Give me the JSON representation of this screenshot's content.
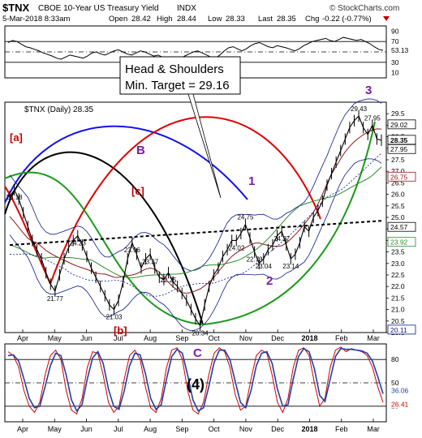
{
  "header": {
    "symbol": "$TNX",
    "name": "CBOE 10-Year US Treasury Yield",
    "exchange": "INDX",
    "watermark": "© StockCharts.com",
    "datetime": "5-Mar-2018 8:33am",
    "open_label": "Open",
    "open": "28.42",
    "high_label": "High",
    "high": "28.44",
    "low_label": "Low",
    "low": "28.33",
    "last_label": "Last",
    "last": "28.35",
    "chg_label": "Chg",
    "chg": "-0.22 (-0.77%)"
  },
  "colors": {
    "price": "#000000",
    "ma50": "#8b1a1a",
    "ma200": "#2e8b2e",
    "band": "#0a1a8a",
    "red_cycle": "#e00000",
    "green_cycle": "#1a9a1a",
    "black_cycle": "#000000",
    "blue_cycle": "#1010ee",
    "purple_label": "#7a1ea8",
    "rsi_red": "#d00000",
    "rsi_blue": "#1f3faa"
  },
  "annotation": {
    "callout_line1": "Head & Shoulders",
    "callout_line2": "Min. Target = 29.16",
    "wave_a": "[a]",
    "wave_b": "[b]",
    "wave_c": "[c]",
    "wave_B": "B",
    "wave_C": "C",
    "wave_1": "1",
    "wave_2": "2",
    "wave_3": "3",
    "wave_4": "(4)"
  },
  "chart_data": [
    {
      "type": "line",
      "panel": "top-rsi",
      "ylim": [
        0,
        100
      ],
      "ticks": [
        "90",
        "70",
        "50",
        "30",
        "10"
      ],
      "current_value_label": "53.13",
      "values": [
        68,
        72,
        70,
        65,
        60,
        58,
        55,
        52,
        48,
        45,
        42,
        38,
        36,
        40,
        44,
        42,
        40,
        38,
        42,
        48,
        50,
        46,
        44,
        48,
        52,
        54,
        50,
        46,
        44,
        48,
        52,
        50,
        46,
        42,
        44,
        40,
        35,
        32,
        30,
        36,
        42,
        46,
        50,
        52,
        48,
        44,
        40,
        38,
        44,
        52,
        58,
        60,
        56,
        52,
        56,
        62,
        66,
        68,
        64,
        60,
        58,
        62,
        60,
        58,
        55,
        52,
        56,
        62,
        66,
        70,
        72,
        74,
        76,
        72,
        70,
        74,
        78,
        76,
        74,
        72,
        74,
        70,
        66,
        60,
        55,
        53
      ]
    },
    {
      "type": "line",
      "panel": "main",
      "title": "$TNX (Daily) 28.35",
      "ylim": [
        20.0,
        30.0
      ],
      "y_ticks": [
        "29.5",
        "29.0",
        "28.5",
        "28.0",
        "27.5",
        "27.0",
        "26.5",
        "26.0",
        "25.5",
        "25.0",
        "24.5",
        "24.0",
        "23.5",
        "23.0",
        "22.5",
        "22.0",
        "21.5",
        "21.0",
        "20.5",
        "20.0"
      ],
      "x_ticks": [
        "Apr",
        "May",
        "Jun",
        "Jul",
        "Aug",
        "Sep",
        "Oct",
        "Nov",
        "Dec",
        "2018",
        "Feb",
        "Mar"
      ],
      "right_labels": [
        "29.02",
        "28.35",
        "27.95",
        "26.75",
        "24.57",
        "23.92",
        "20.11"
      ],
      "swing_labels": [
        "26.18",
        "24.23",
        "21.77",
        "21.03",
        "23.96",
        "23.37",
        "22.25",
        "20.34",
        "24.02",
        "24.75",
        "22.73",
        "23.04",
        "24.37",
        "23.14",
        "29.43",
        "27.95"
      ],
      "price": [
        25.9,
        26.2,
        25.8,
        25.2,
        24.6,
        24.0,
        23.6,
        23.2,
        22.6,
        22.1,
        21.8,
        22.5,
        23.2,
        23.7,
        24.0,
        24.2,
        23.8,
        23.3,
        22.8,
        22.4,
        22.0,
        21.6,
        21.2,
        21.0,
        21.4,
        22.2,
        23.2,
        23.9,
        23.4,
        22.8,
        23.2,
        23.4,
        22.8,
        22.4,
        22.3,
        22.6,
        22.2,
        22.0,
        21.7,
        21.4,
        21.0,
        20.6,
        20.3,
        21.2,
        22.0,
        22.5,
        22.8,
        23.3,
        23.6,
        24.0,
        24.0,
        24.3,
        24.7,
        24.1,
        23.5,
        23.0,
        23.2,
        23.6,
        23.8,
        24.2,
        24.4,
        23.8,
        23.2,
        23.4,
        23.9,
        24.6,
        24.4,
        25.0,
        25.3,
        25.7,
        26.4,
        26.9,
        27.4,
        27.9,
        28.4,
        28.9,
        29.2,
        29.4,
        28.9,
        28.6,
        29.0,
        28.4,
        28.35
      ],
      "neckline": [
        [
          0,
          23.8
        ],
        [
          82,
          24.85
        ]
      ]
    },
    {
      "type": "line",
      "panel": "bottom-stochastic",
      "ylim": [
        0,
        100
      ],
      "ticks": [
        "80",
        "50",
        "20"
      ],
      "current_value_labels": [
        "36.06",
        "26.41"
      ],
      "x_ticks": [
        "Apr",
        "May",
        "Jun",
        "Jul",
        "Aug",
        "Sep",
        "Oct",
        "Nov",
        "Dec",
        "2018",
        "Feb",
        "Mar"
      ],
      "fast": [
        90,
        85,
        70,
        40,
        20,
        12,
        25,
        60,
        85,
        92,
        80,
        40,
        15,
        10,
        30,
        70,
        90,
        88,
        60,
        25,
        12,
        20,
        55,
        85,
        92,
        80,
        45,
        18,
        12,
        30,
        70,
        92,
        95,
        80,
        40,
        15,
        10,
        25,
        60,
        88,
        95,
        90,
        70,
        35,
        15,
        20,
        55,
        85,
        92,
        88,
        60,
        25,
        12,
        30,
        70,
        92,
        95,
        85,
        50,
        20,
        30,
        70,
        92,
        96,
        90,
        94,
        92,
        90,
        85,
        70,
        45,
        25
      ],
      "slow": [
        85,
        86,
        78,
        55,
        30,
        18,
        20,
        45,
        72,
        88,
        85,
        60,
        28,
        14,
        22,
        55,
        82,
        90,
        75,
        42,
        20,
        16,
        40,
        72,
        88,
        86,
        62,
        30,
        16,
        22,
        55,
        84,
        93,
        88,
        60,
        28,
        14,
        18,
        45,
        76,
        92,
        92,
        80,
        52,
        25,
        18,
        40,
        72,
        88,
        90,
        75,
        42,
        20,
        22,
        55,
        84,
        94,
        90,
        68,
        34,
        26,
        55,
        84,
        94,
        93,
        93,
        92,
        91,
        88,
        78,
        58,
        36
      ]
    }
  ]
}
